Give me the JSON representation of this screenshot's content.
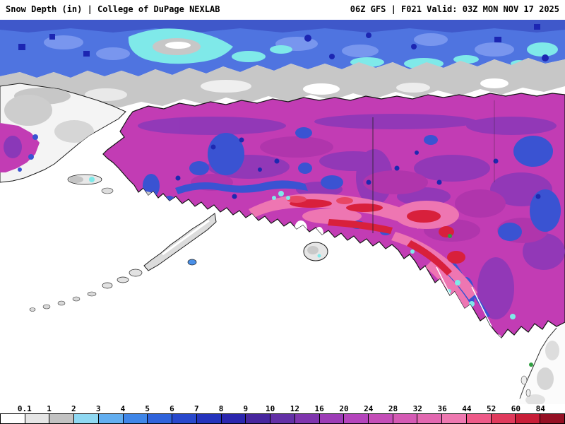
{
  "header": {
    "left": "Snow Depth (in) | College of DuPage NEXLAB",
    "right": "06Z GFS | F021 Valid: 03Z MON NOV 17 2025"
  },
  "colorbar": {
    "labels": [
      "0.1",
      "1",
      "2",
      "3",
      "4",
      "5",
      "6",
      "7",
      "8",
      "9",
      "10",
      "12",
      "16",
      "20",
      "24",
      "28",
      "32",
      "36",
      "44",
      "52",
      "60",
      "84"
    ],
    "colors": [
      "#ffffff",
      "#e6e6e6",
      "#c2c2c2",
      "#8fd8f2",
      "#62aef0",
      "#3f86e8",
      "#2f63db",
      "#2848cc",
      "#2433bc",
      "#2b26ae",
      "#47269e",
      "#6330a6",
      "#7f35ae",
      "#9c3cb6",
      "#b444bc",
      "#c44eb8",
      "#d45ab4",
      "#e268b0",
      "#ee78b0",
      "#ee5a88",
      "#e03a5c",
      "#c81e38",
      "#951024"
    ]
  },
  "map_palette": {
    "ocean_no_snow": "#ffffff",
    "trace_gray": "#c7c7c7",
    "light_snow_cyan": "#7fe9e9",
    "shallow_snow_blue": "#4f74e0",
    "mid_snow_navy": "#1e28b0",
    "deep_snow_purple": "#8a38b8",
    "deep_snow_magenta": "#c23cb4",
    "heavy_snow_pink": "#ee76b2",
    "extreme_snow_red": "#d8203c"
  }
}
